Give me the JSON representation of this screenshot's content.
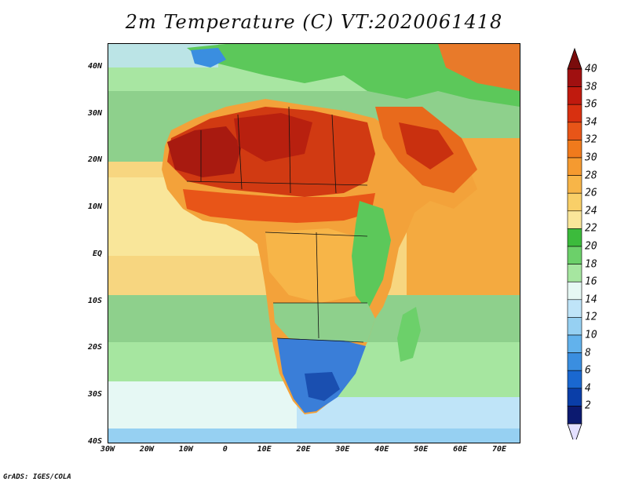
{
  "title": "2m Temperature (C) VT:2020061418",
  "credit": "GrADS: IGES/COLA",
  "lat_labels": [
    "40N",
    "30N",
    "20N",
    "10N",
    "EQ",
    "10S",
    "20S",
    "30S",
    "40S"
  ],
  "lon_labels": [
    "30W",
    "20W",
    "10W",
    "0",
    "10E",
    "20E",
    "30E",
    "40E",
    "50E",
    "60E",
    "70E"
  ],
  "colorbar": {
    "labels": [
      "40",
      "38",
      "36",
      "34",
      "32",
      "30",
      "28",
      "26",
      "24",
      "22",
      "20",
      "18",
      "16",
      "14",
      "12",
      "10",
      "8",
      "6",
      "4",
      "2"
    ],
    "colors": [
      "#a01010",
      "#c01a0e",
      "#d83010",
      "#e85518",
      "#f07a1c",
      "#f59a30",
      "#f7b548",
      "#f9cf68",
      "#fae69a",
      "#3cbb3c",
      "#6cd06a",
      "#a6e6a0",
      "#e6f8f4",
      "#bfe4f8",
      "#96d0f2",
      "#62b2ec",
      "#3a8ee0",
      "#1a68d0",
      "#0a3ea8",
      "#0c1a70"
    ],
    "top_arrow_color": "#7a0c0c",
    "bottom_arrow_color": "#e4e0ff"
  },
  "map": {
    "lon_range": [
      -30,
      75
    ],
    "lat_range": [
      -40,
      45
    ],
    "ocean_color": "#8ed08c",
    "regions_note_colors": {
      "sahara": "#c8320f",
      "hot_core": "#a81a10",
      "south_africa": "#3a7ed8",
      "highveld": "#1a4fb0"
    }
  }
}
